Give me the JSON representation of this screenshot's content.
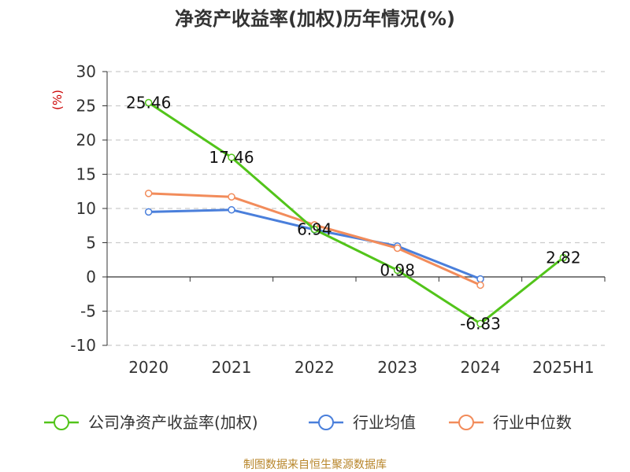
{
  "chart_data": {
    "type": "line",
    "title": "净资产收益率(加权)历年情况(%)",
    "ylabel": "(%)",
    "xlabel": "",
    "categories": [
      "2020",
      "2021",
      "2022",
      "2023",
      "2024",
      "2025H1"
    ],
    "ylim": [
      -10,
      30
    ],
    "yticks": [
      30,
      25,
      20,
      15,
      10,
      5,
      0,
      -5,
      -10
    ],
    "grid": true,
    "legend_position": "bottom",
    "series": [
      {
        "name": "公司净资产收益率(加权)",
        "color": "#52c41a",
        "values": [
          25.46,
          17.46,
          6.94,
          0.98,
          -6.83,
          2.82
        ],
        "labels": [
          "25.46",
          "17.46",
          "6.94",
          "0.98",
          "-6.83",
          "2.82"
        ]
      },
      {
        "name": "行业均值",
        "color": "#4a7fdb",
        "values": [
          9.5,
          9.8,
          6.9,
          4.5,
          -0.3,
          null
        ]
      },
      {
        "name": "行业中位数",
        "color": "#f28c5b",
        "values": [
          12.2,
          11.7,
          7.6,
          4.2,
          -1.2,
          null
        ]
      }
    ],
    "source": "制图数据来自恒生聚源数据库"
  }
}
